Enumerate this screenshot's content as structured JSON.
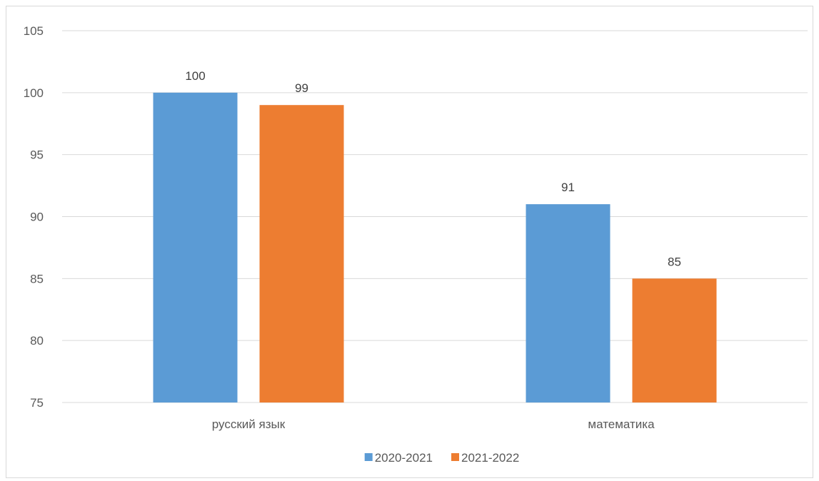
{
  "chart_data": {
    "type": "bar",
    "title": "",
    "xlabel": "",
    "ylabel": "",
    "categories": [
      "русский язык",
      "математика"
    ],
    "series": [
      {
        "name": "2020-2021",
        "values": [
          100,
          91
        ],
        "color": "#5b9bd5"
      },
      {
        "name": "2021-2022",
        "values": [
          99,
          85
        ],
        "color": "#ed7d31"
      }
    ],
    "ylim": [
      75,
      105
    ],
    "ytick_step": 5,
    "grid": true,
    "legend_position": "bottom",
    "data_labels": true
  }
}
